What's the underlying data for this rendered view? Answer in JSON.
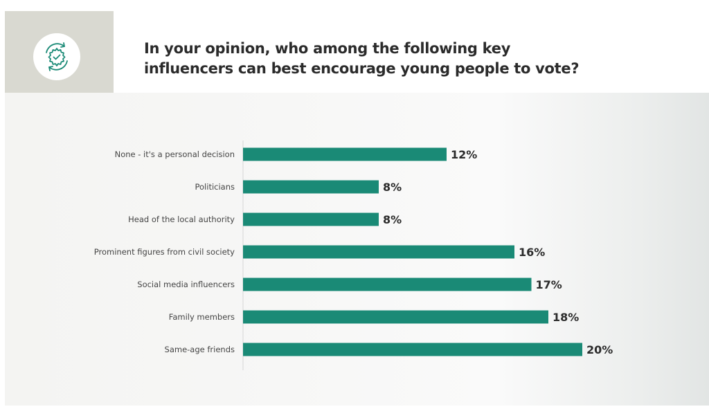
{
  "header": {
    "title_line1": "In your opinion, who among the following key",
    "title_line2": "influencers can best encourage young people to vote?",
    "icon": "gear-checkmark-icon"
  },
  "colors": {
    "bar": "#1a8a76",
    "icon_stroke": "#1a8a76",
    "icon_box": "#d9d9d1"
  },
  "chart_data": {
    "type": "bar",
    "orientation": "horizontal",
    "title": "In your opinion, who among the following key influencers can best encourage young people to vote?",
    "categories": [
      "None - it's a personal decision",
      "Politicians",
      "Head of the local authority",
      "Prominent figures from civil society",
      "Social media influencers",
      "Family members",
      "Same-age friends"
    ],
    "values": [
      12,
      8,
      8,
      16,
      17,
      18,
      20
    ],
    "value_labels": [
      "12%",
      "8%",
      "8%",
      "16%",
      "17%",
      "18%",
      "20%"
    ],
    "unit": "%",
    "xlim": [
      0,
      20
    ],
    "grid": false,
    "legend": "none"
  }
}
